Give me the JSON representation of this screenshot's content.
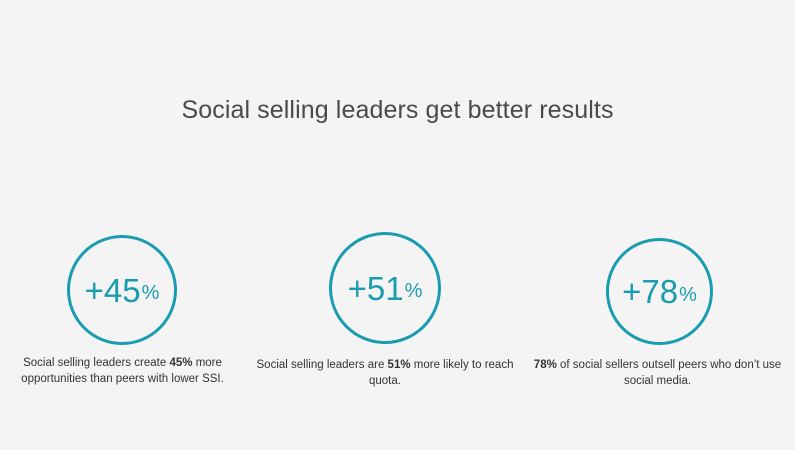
{
  "title": "Social selling leaders get better results",
  "stats": [
    {
      "value": "+45",
      "unit": "%",
      "desc_before": "Social selling leaders create ",
      "desc_bold": "45%",
      "desc_after": " more opportunities than peers with lower SSI."
    },
    {
      "value": "+51",
      "unit": "%",
      "desc_before": "Social selling leaders are ",
      "desc_bold": "51%",
      "desc_after": " more likely to reach quota."
    },
    {
      "value": "+78",
      "unit": "%",
      "desc_before": "",
      "desc_bold": "78%",
      "desc_after": " of social sellers outsell peers who don’t use social media."
    }
  ],
  "colors": {
    "accent": "#1a9cb0",
    "background": "#f4f4f4",
    "text": "#333333"
  }
}
